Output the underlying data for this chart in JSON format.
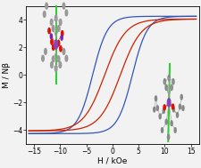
{
  "title": "",
  "xlabel": "H / kOe",
  "ylabel": "M / Nβ",
  "xlim": [
    -16.5,
    16.5
  ],
  "ylim": [
    -5.0,
    5.0
  ],
  "xticks": [
    -15,
    -10,
    -5,
    0,
    5,
    10,
    15
  ],
  "yticks": [
    -4,
    -2,
    0,
    2,
    4
  ],
  "bg_color": "#f2f2f2",
  "curve_blue": "#3355bb",
  "curve_red": "#cc2200",
  "figsize": [
    2.26,
    1.89
  ],
  "dpi": 100,
  "blue_sat": 4.25,
  "blue_Hc": 3.8,
  "blue_steep": 0.35,
  "red_sat": 4.05,
  "red_Hc": 1.5,
  "red_steep": 0.25
}
